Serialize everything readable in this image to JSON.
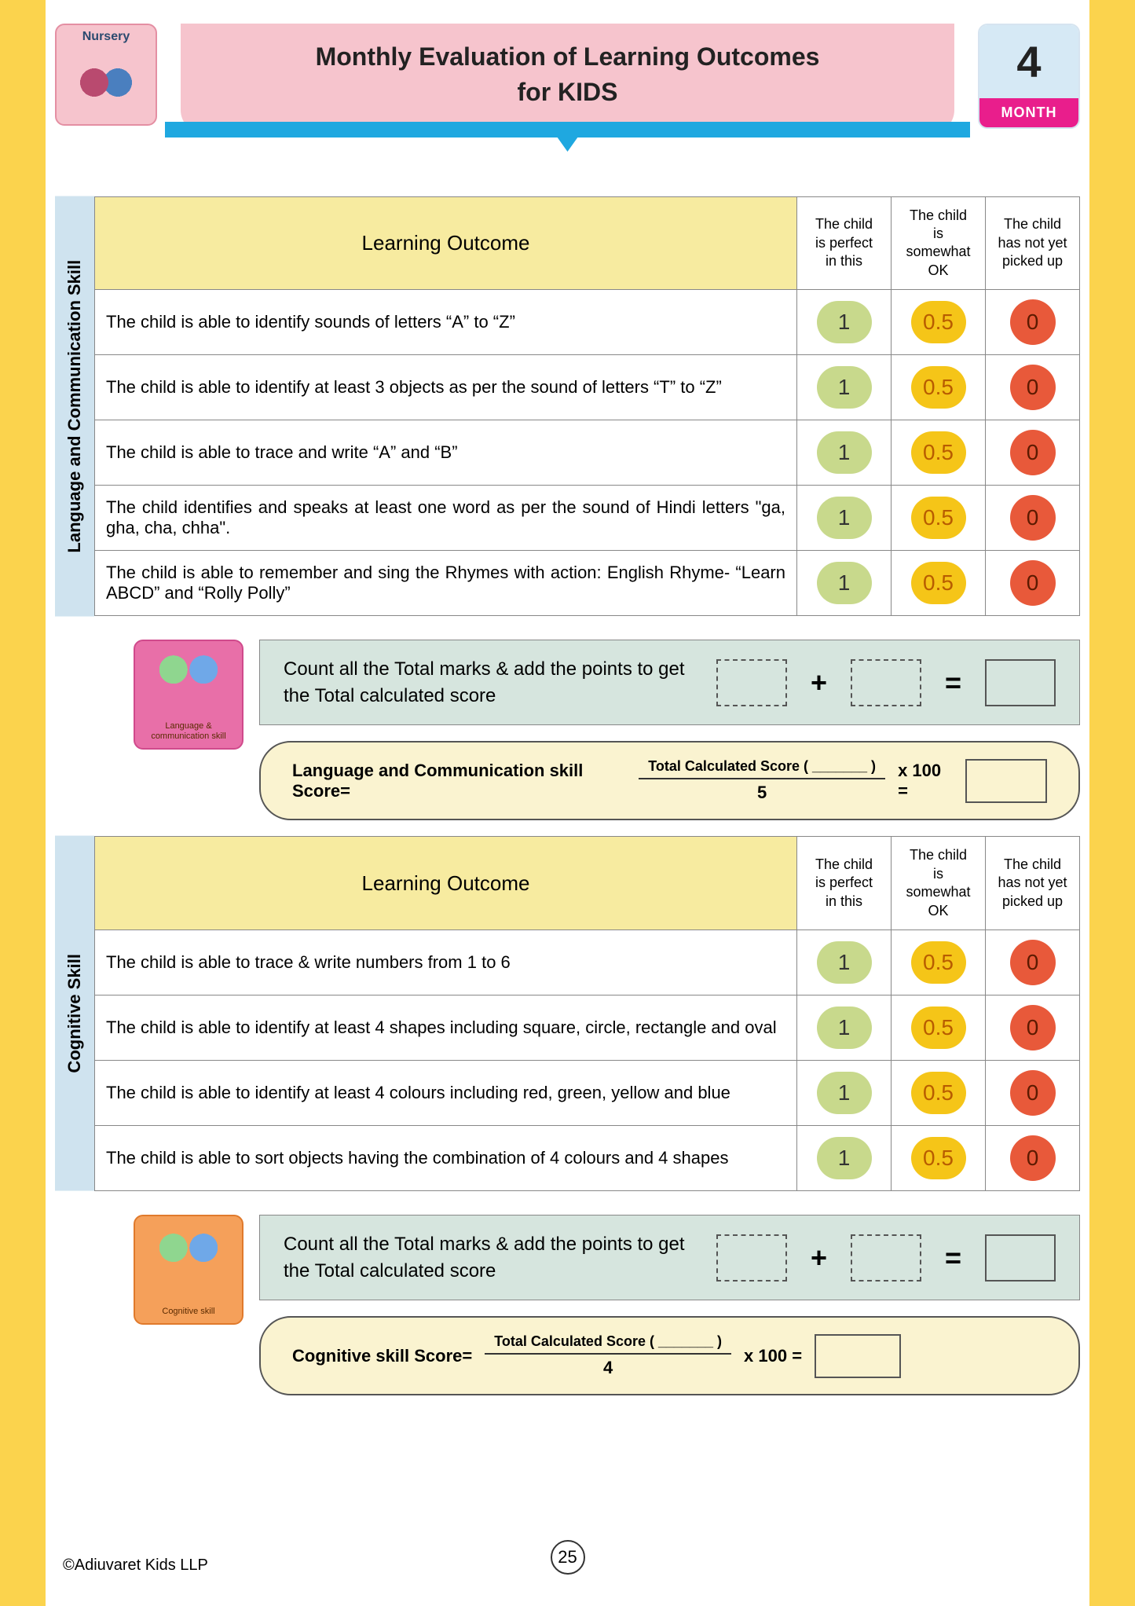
{
  "header": {
    "nursery_label": "Nursery",
    "title_line1": "Monthly Evaluation of Learning Outcomes",
    "title_line2": "for KIDS",
    "month_number": "4",
    "month_label": "MONTH"
  },
  "columns": {
    "outcome": "Learning Outcome",
    "perfect": "The child is perfect in this",
    "somewhat": "The child is somewhat OK",
    "notyet": "The child has not yet picked up"
  },
  "score_values": {
    "perfect": "1",
    "somewhat": "0.5",
    "notyet": "0"
  },
  "section1": {
    "label": "Language and Communication Skill",
    "rows": [
      "The child is able to identify sounds of letters “A” to “Z”",
      "The child is able to identify at least 3 objects as per the sound of letters “T” to “Z”",
      "The child is able to trace and write “A” and “B”",
      "The child identifies and speaks at least one word as per the sound of Hindi letters \"ga, gha, cha, chha\".",
      "The child is able to remember and sing the Rhymes with action: English Rhyme- “Learn ABCD” and “Rolly Polly”"
    ],
    "icon_label": "Language & communication skill",
    "formula_label": "Language and Communication skill Score=",
    "divisor": "5"
  },
  "section2": {
    "label": "Cognitive Skill",
    "rows": [
      "The child is able to trace & write numbers from 1 to 6",
      "The child is able to identify at least 4 shapes including square, circle, rectangle and oval",
      "The child is able to identify at least 4 colours including red, green, yellow and blue",
      "The child is able to sort objects having the combination of 4 colours and 4 shapes"
    ],
    "icon_label": "Cognitive skill",
    "formula_label": "Cognitive skill Score=",
    "divisor": "4"
  },
  "calc": {
    "count_text": "Count all the Total marks & add the points to get the Total calculated score",
    "frac_top": "Total Calculated Score ( _______ )",
    "times_label": "x 100 ="
  },
  "footer": {
    "page_number": "25",
    "copyright": "©Adiuvaret Kids LLP"
  },
  "colors": {
    "yellow_border": "#fbd34d",
    "pink_banner": "#f6c4cd",
    "blue_ribbon": "#1fa8e0",
    "month_bg": "#d6e9f5",
    "month_pink": "#e91e8c",
    "vert_label_bg": "#cfe3ef",
    "header_yellow": "#f7eba0",
    "pill_green": "#c8d98c",
    "pill_yellow": "#f5c518",
    "pill_red": "#e8593a",
    "count_bg": "#d6e5de",
    "formula_bg": "#faf3d0"
  }
}
